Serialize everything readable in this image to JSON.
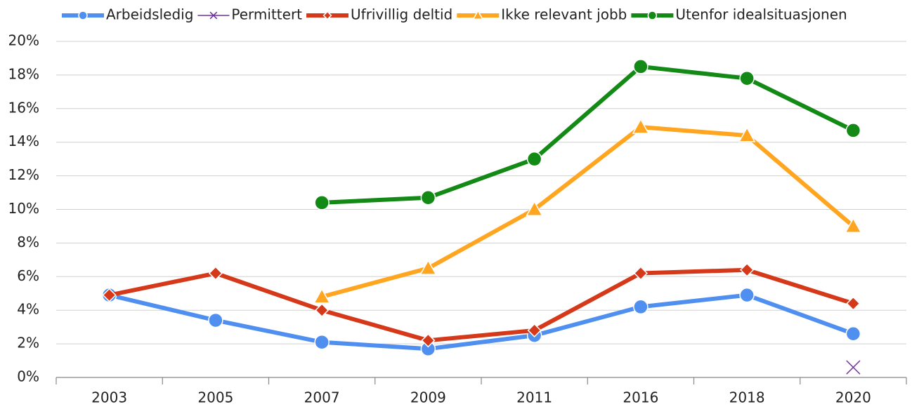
{
  "chart_data": {
    "type": "line",
    "categories": [
      "2003",
      "2005",
      "2007",
      "2009",
      "2011",
      "2016",
      "2018",
      "2020"
    ],
    "series": [
      {
        "name": "Arbeidsledig",
        "color": "#4f8ff0",
        "marker": "circle",
        "values": [
          4.9,
          3.4,
          2.1,
          1.7,
          2.5,
          4.2,
          4.9,
          2.6
        ]
      },
      {
        "name": "Permittert",
        "color": "#7030a0",
        "marker": "x",
        "values": [
          null,
          null,
          null,
          null,
          null,
          null,
          null,
          0.6
        ]
      },
      {
        "name": "Ufrivillig deltid",
        "color": "#d5391a",
        "marker": "diamond",
        "values": [
          4.9,
          6.2,
          4.0,
          2.2,
          2.8,
          6.2,
          6.4,
          4.4
        ]
      },
      {
        "name": "Ikke relevant jobb",
        "color": "#ffa51f",
        "marker": "triangle",
        "values": [
          null,
          null,
          4.8,
          6.5,
          10.0,
          14.9,
          14.4,
          9.0
        ]
      },
      {
        "name": "Utenfor idealsituasjonen",
        "color": "#128a15",
        "marker": "circle",
        "values": [
          null,
          null,
          10.4,
          10.7,
          13.0,
          18.5,
          17.8,
          14.7
        ]
      }
    ],
    "ylim": [
      0,
      20
    ],
    "yticks": [
      {
        "value": 0,
        "label": "0%"
      },
      {
        "value": 2,
        "label": "2%"
      },
      {
        "value": 4,
        "label": "4%"
      },
      {
        "value": 6,
        "label": "6%"
      },
      {
        "value": 8,
        "label": "8%"
      },
      {
        "value": 10,
        "label": "10%"
      },
      {
        "value": 12,
        "label": "12%"
      },
      {
        "value": 14,
        "label": "14%"
      },
      {
        "value": 16,
        "label": "16%"
      },
      {
        "value": 18,
        "label": "18%"
      },
      {
        "value": 20,
        "label": "20%"
      }
    ],
    "grid": true,
    "legend": "top"
  }
}
